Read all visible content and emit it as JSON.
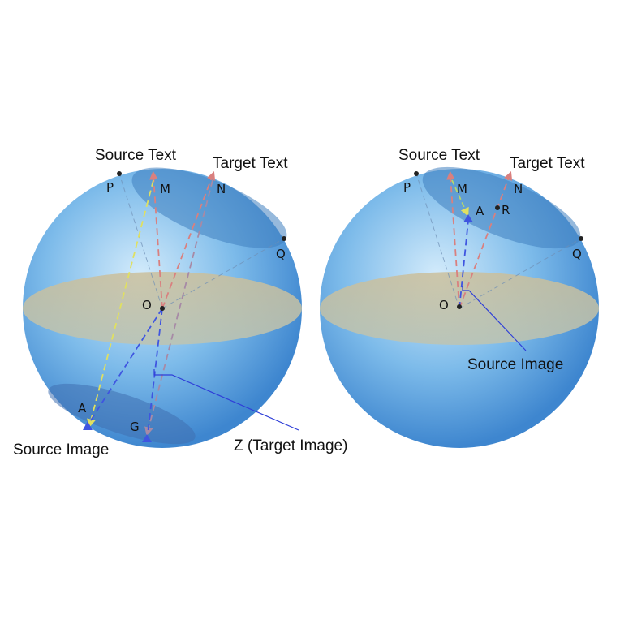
{
  "left": {
    "source_text": "Source Text",
    "target_text": "Target Text",
    "source_image": "Source Image",
    "target_image": "Z (Target Image)",
    "points": {
      "P": "P",
      "M": "M",
      "N": "N",
      "Q": "Q",
      "O": "O",
      "A": "A",
      "G": "G"
    }
  },
  "right": {
    "source_text": "Source Text",
    "target_text": "Target Text",
    "source_image": "Source Image",
    "points": {
      "P": "P",
      "M": "M",
      "N": "N",
      "Q": "Q",
      "O": "O",
      "A": "A",
      "R": "R"
    }
  },
  "colors": {
    "sphere": "#5aa3df",
    "equator": "#d8c9a3",
    "cap": "#3f7fc0",
    "target_arrow": "#d9807f",
    "source_arrow": "#e8e86a",
    "image_arrow": "#3f55e0",
    "callout": "#2f3fd8"
  }
}
